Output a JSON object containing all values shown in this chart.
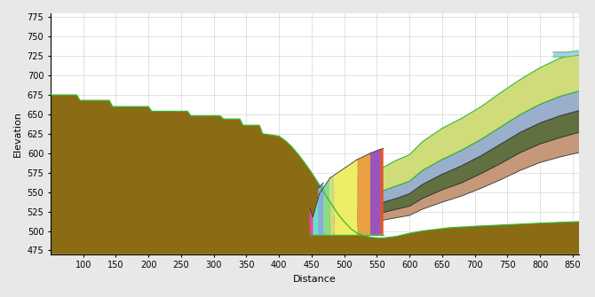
{
  "xlim": [
    50,
    860
  ],
  "ylim": [
    470,
    780
  ],
  "xlabel": "Distance",
  "ylabel": "Elevation",
  "bg_color": "#ffffff",
  "grid_color": "#cccccc",
  "green": "#33bb33",
  "brown": "#8B6B14",
  "tan": "#C49878",
  "yellow_green": "#D0DC7A",
  "blue_gray": "#9AAFCC",
  "dark_olive": "#607040",
  "cyan_teal": "#70DDCC",
  "lime": "#88DD88",
  "yellow": "#EEEE66",
  "orange": "#E8A040",
  "magenta": "#EE44AA",
  "blue_light": "#88AADD",
  "red_orange": "#DD5533",
  "purple": "#9955BB",
  "light_blue_top": "#AACCEE",
  "dark_line": "#333333"
}
